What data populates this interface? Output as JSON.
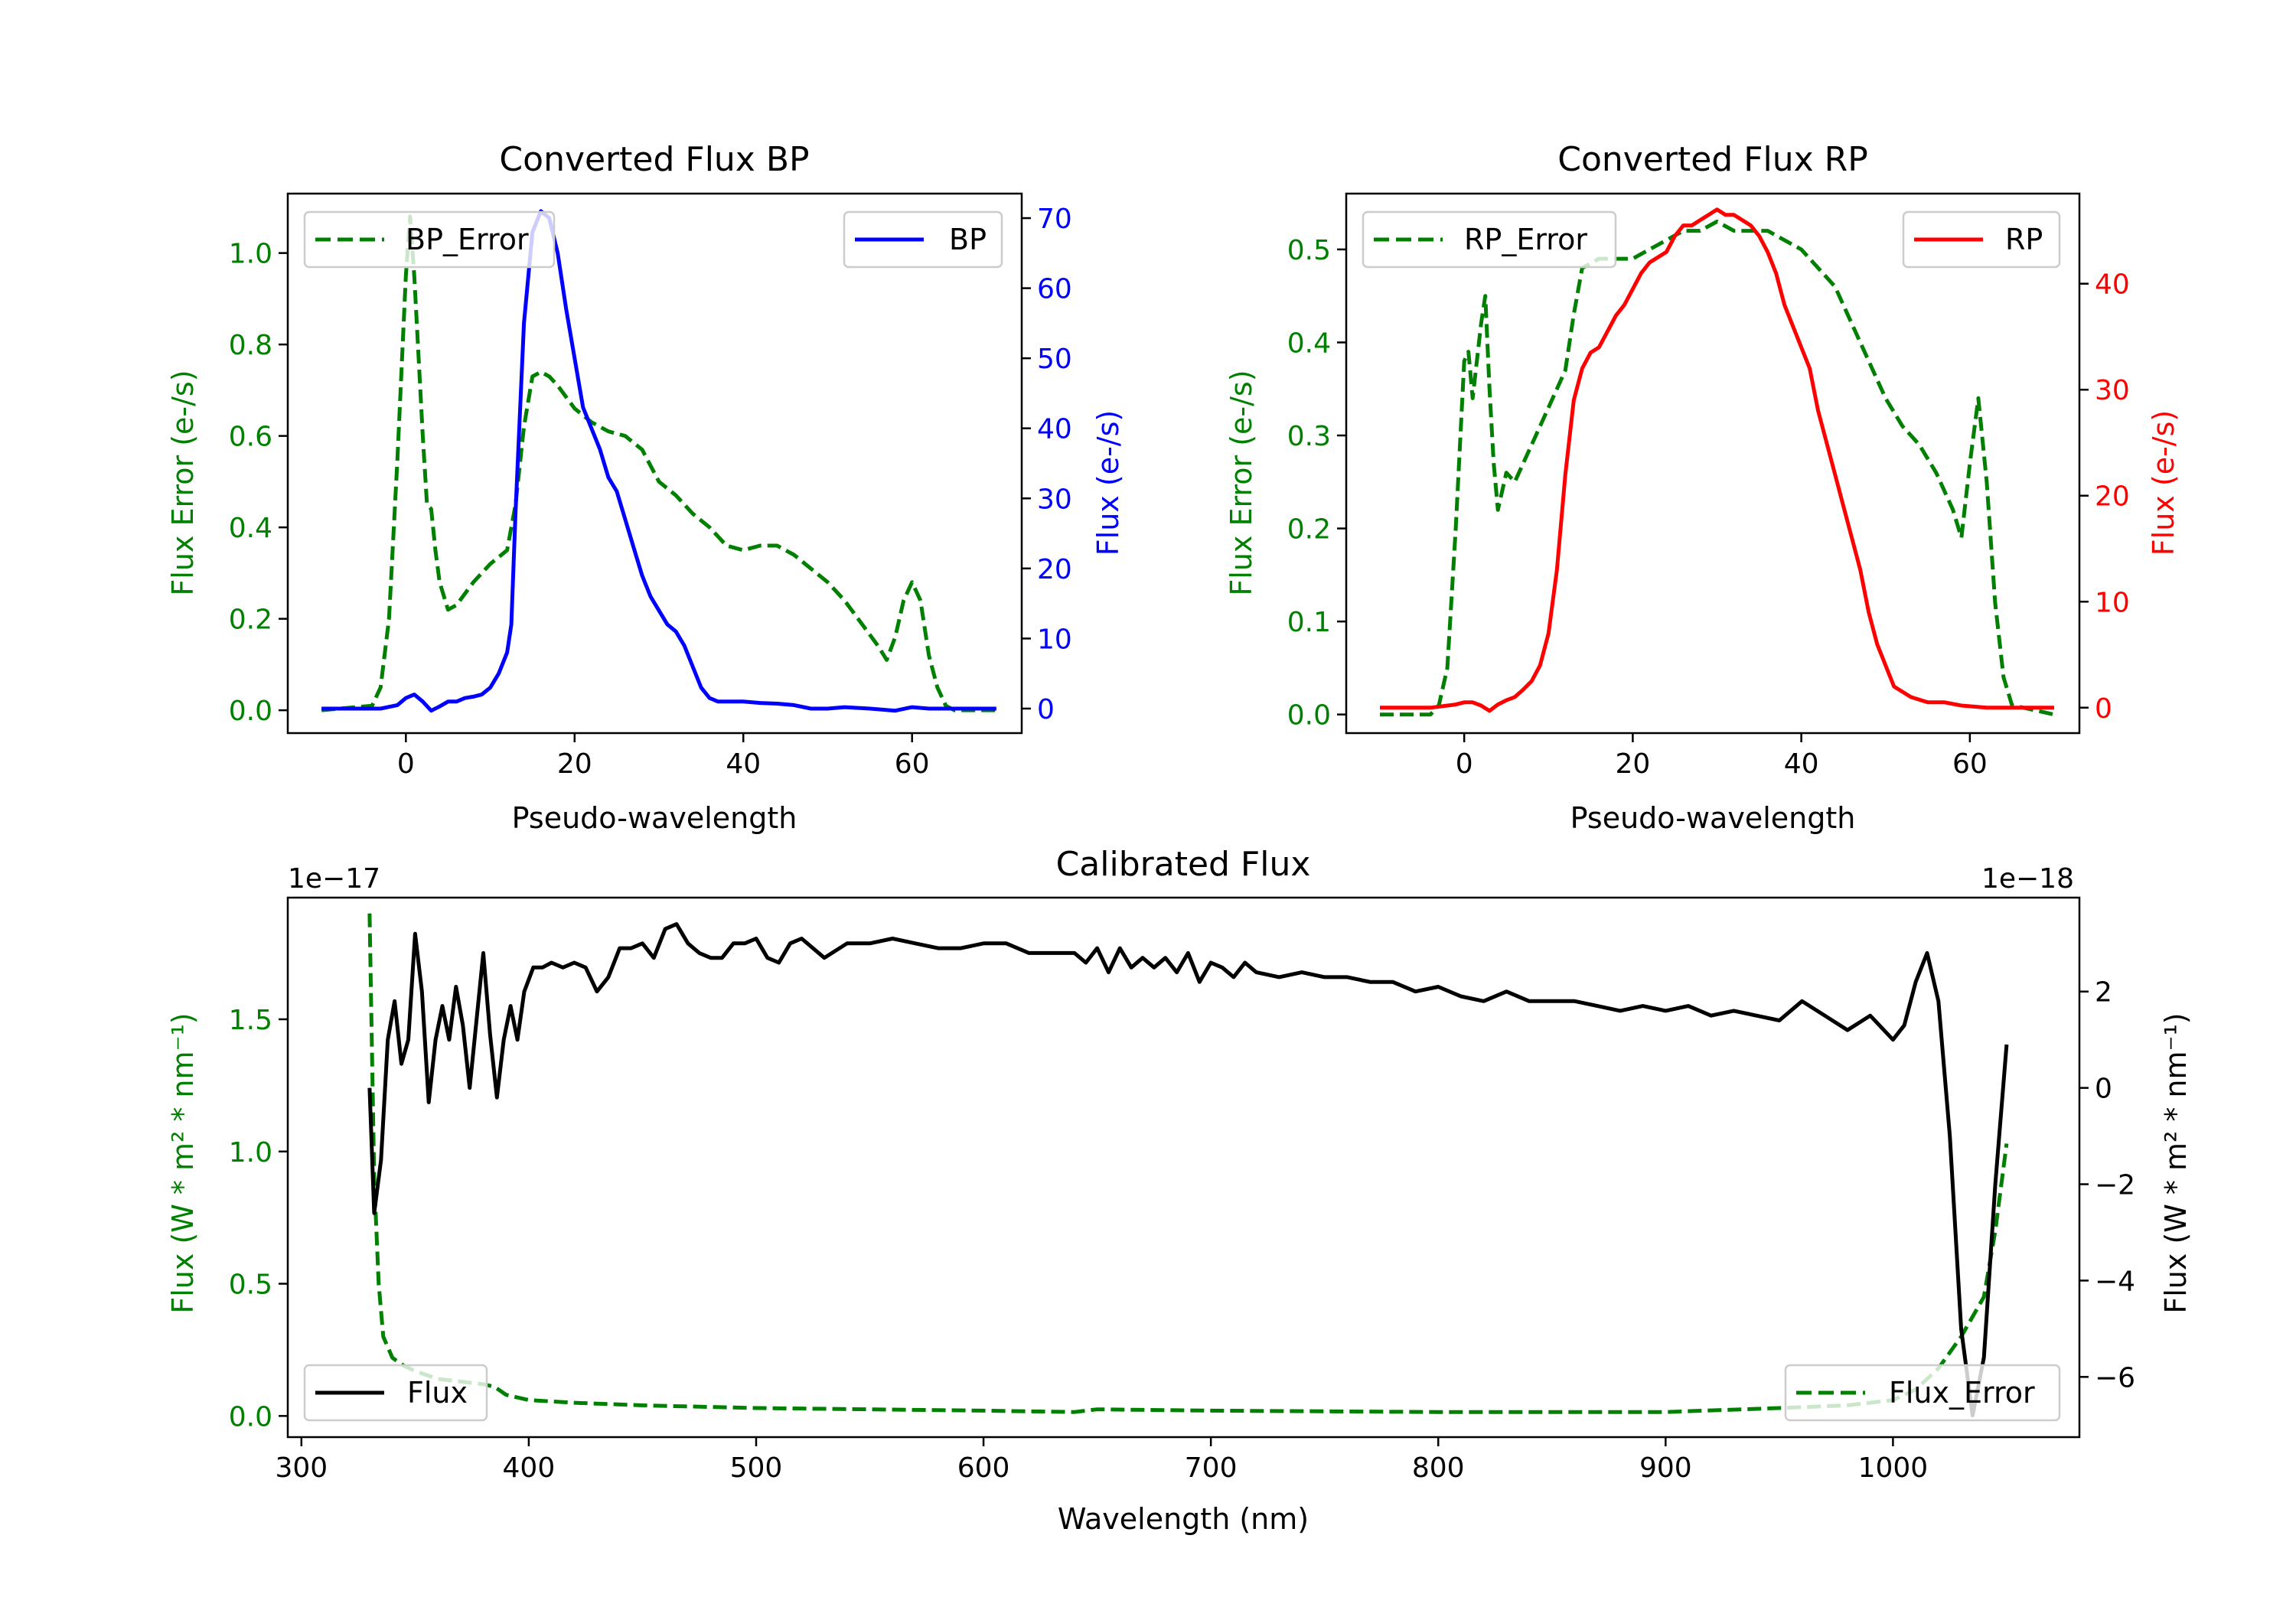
{
  "colors": {
    "green": "#008000",
    "blue": "#0000ff",
    "red": "#ff0000",
    "black": "#000000"
  },
  "chart_data": [
    {
      "type": "line",
      "title": "Converted Flux BP",
      "xlabel": "Pseudo-wavelength",
      "ylabel_left": "Flux Error (e-/s)",
      "ylabel_right": "Flux (e-/s)",
      "xlim": [
        -14,
        73
      ],
      "ylim_left": [
        -0.05,
        1.13
      ],
      "ylim_right": [
        -3.5,
        73.5
      ],
      "xticks": [
        0,
        20,
        40,
        60
      ],
      "xtick_labels": [
        "0",
        "20",
        "40",
        "60"
      ],
      "yticks_left": [
        0.0,
        0.2,
        0.4,
        0.6,
        0.8,
        1.0
      ],
      "ytick_labels_left": [
        "0.0",
        "0.2",
        "0.4",
        "0.6",
        "0.8",
        "1.0"
      ],
      "yticks_right": [
        0,
        10,
        20,
        30,
        40,
        50,
        60,
        70
      ],
      "ytick_labels_right": [
        "0",
        "10",
        "20",
        "30",
        "40",
        "50",
        "60",
        "70"
      ],
      "legend_left": "BP_Error",
      "legend_right": "BP",
      "series": [
        {
          "name": "BP_Error",
          "axis": "left",
          "style": "dashed",
          "color": "green",
          "x": [
            -10,
            -4,
            -3,
            -2,
            -1,
            0,
            0.5,
            1,
            2,
            2.5,
            3,
            3.5,
            4,
            5,
            6,
            8,
            10,
            12,
            13,
            14,
            15,
            16,
            17,
            18,
            20,
            22,
            24,
            26,
            28,
            30,
            32,
            34,
            36,
            38,
            40,
            42,
            44,
            46,
            48,
            50,
            52,
            54,
            56,
            57,
            58,
            59,
            60,
            61,
            62,
            63,
            64,
            65,
            70
          ],
          "y": [
            0,
            0.01,
            0.05,
            0.2,
            0.55,
            0.95,
            1.08,
            0.95,
            0.6,
            0.45,
            0.44,
            0.35,
            0.28,
            0.22,
            0.23,
            0.28,
            0.32,
            0.35,
            0.45,
            0.62,
            0.73,
            0.74,
            0.73,
            0.71,
            0.66,
            0.63,
            0.61,
            0.6,
            0.57,
            0.5,
            0.47,
            0.43,
            0.4,
            0.36,
            0.35,
            0.36,
            0.36,
            0.34,
            0.31,
            0.28,
            0.24,
            0.19,
            0.14,
            0.11,
            0.16,
            0.24,
            0.28,
            0.24,
            0.12,
            0.05,
            0.01,
            0,
            0
          ]
        },
        {
          "name": "BP",
          "axis": "right",
          "style": "solid",
          "color": "blue",
          "x": [
            -10,
            -3,
            -1,
            0,
            1,
            2,
            3,
            4,
            5,
            6,
            7,
            8,
            9,
            10,
            11,
            12,
            12.5,
            13,
            14,
            15,
            16,
            17,
            18,
            19,
            20,
            21,
            22,
            23,
            24,
            25,
            26,
            27,
            28,
            29,
            30,
            31,
            32,
            33,
            34,
            35,
            36,
            37,
            38,
            40,
            42,
            44,
            46,
            48,
            50,
            52,
            55,
            58,
            60,
            62,
            65,
            70
          ],
          "y": [
            0,
            0,
            0.5,
            1.5,
            2,
            1,
            -0.3,
            0.3,
            1,
            1,
            1.5,
            1.7,
            2,
            3,
            5,
            8,
            12,
            28,
            55,
            68,
            71,
            70,
            65,
            57,
            50,
            43,
            40,
            37,
            33,
            31,
            27,
            23,
            19,
            16,
            14,
            12,
            11,
            9,
            6,
            3,
            1.5,
            1,
            1,
            1,
            0.8,
            0.7,
            0.5,
            0,
            0,
            0.2,
            0,
            -0.3,
            0.2,
            0,
            0,
            0
          ]
        }
      ]
    },
    {
      "type": "line",
      "title": "Converted Flux RP",
      "xlabel": "Pseudo-wavelength",
      "ylabel_left": "Flux Error (e-/s)",
      "ylabel_right": "Flux (e-/s)",
      "xlim": [
        -14,
        73
      ],
      "ylim_left": [
        -0.02,
        0.56
      ],
      "ylim_right": [
        -2.4,
        48.5
      ],
      "xticks": [
        0,
        20,
        40,
        60
      ],
      "xtick_labels": [
        "0",
        "20",
        "40",
        "60"
      ],
      "yticks_left": [
        0.0,
        0.1,
        0.2,
        0.3,
        0.4,
        0.5
      ],
      "ytick_labels_left": [
        "0.0",
        "0.1",
        "0.2",
        "0.3",
        "0.4",
        "0.5"
      ],
      "yticks_right": [
        0,
        10,
        20,
        30,
        40
      ],
      "ytick_labels_right": [
        "0",
        "10",
        "20",
        "30",
        "40"
      ],
      "legend_left": "RP_Error",
      "legend_right": "RP",
      "series": [
        {
          "name": "RP_Error",
          "axis": "left",
          "style": "dashed",
          "color": "green",
          "x": [
            -10,
            -4,
            -3,
            -2,
            -1,
            0,
            0.5,
            1,
            1.5,
            2,
            2.5,
            3,
            3.5,
            4,
            5,
            6,
            8,
            10,
            12,
            13,
            14,
            16,
            18,
            20,
            22,
            24,
            26,
            28,
            30,
            32,
            34,
            36,
            38,
            40,
            42,
            44,
            46,
            48,
            50,
            52,
            54,
            56,
            57,
            58,
            59,
            60,
            61,
            62,
            63,
            64,
            65,
            70
          ],
          "y": [
            0,
            0,
            0.01,
            0.05,
            0.2,
            0.38,
            0.39,
            0.34,
            0.38,
            0.42,
            0.45,
            0.35,
            0.27,
            0.22,
            0.26,
            0.25,
            0.29,
            0.33,
            0.37,
            0.43,
            0.48,
            0.49,
            0.49,
            0.49,
            0.5,
            0.51,
            0.52,
            0.52,
            0.53,
            0.52,
            0.52,
            0.52,
            0.51,
            0.5,
            0.48,
            0.46,
            0.42,
            0.38,
            0.34,
            0.31,
            0.29,
            0.26,
            0.24,
            0.22,
            0.19,
            0.27,
            0.34,
            0.25,
            0.12,
            0.04,
            0.01,
            0
          ]
        },
        {
          "name": "RP",
          "axis": "right",
          "style": "solid",
          "color": "red",
          "x": [
            -10,
            -4,
            -1,
            0,
            1,
            2,
            3,
            4,
            5,
            6,
            7,
            8,
            9,
            10,
            11,
            12,
            13,
            14,
            15,
            16,
            17,
            18,
            19,
            20,
            21,
            22,
            23,
            24,
            25,
            26,
            27,
            28,
            29,
            30,
            31,
            32,
            33,
            34,
            35,
            36,
            37,
            38,
            39,
            40,
            41,
            42,
            43,
            44,
            45,
            46,
            47,
            48,
            49,
            50,
            51,
            52,
            53,
            55,
            57,
            59,
            62,
            70
          ],
          "y": [
            0,
            0,
            0.3,
            0.5,
            0.5,
            0.2,
            -0.3,
            0.3,
            0.7,
            1,
            1.7,
            2.5,
            4,
            7,
            13,
            22,
            29,
            32,
            33.5,
            34,
            35.5,
            37,
            38,
            39.5,
            41,
            42,
            42.5,
            43,
            44.5,
            45.5,
            45.5,
            46,
            46.5,
            47,
            46.5,
            46.5,
            46,
            45.5,
            44.5,
            43,
            41,
            38,
            36,
            34,
            32,
            28,
            25,
            22,
            19,
            16,
            13,
            9,
            6,
            4,
            2,
            1.5,
            1,
            0.5,
            0.5,
            0.2,
            0,
            0
          ]
        }
      ]
    },
    {
      "type": "line",
      "title": "Calibrated Flux",
      "xlabel": "Wavelength (nm)",
      "ylabel_left": "Flux (W * m² * nm⁻¹)",
      "ylabel_right": "Flux (W * m² * nm⁻¹)",
      "left_scale_label": "1e−17",
      "right_scale_label": "1e−18",
      "xlim": [
        294,
        1082
      ],
      "ylim_left": [
        -0.08,
        1.96
      ],
      "ylim_right": [
        -7.25,
        3.95
      ],
      "xticks": [
        300,
        400,
        500,
        600,
        700,
        800,
        900,
        1000
      ],
      "xtick_labels": [
        "300",
        "400",
        "500",
        "600",
        "700",
        "800",
        "900",
        "1000"
      ],
      "yticks_left": [
        0.0,
        0.5,
        1.0,
        1.5
      ],
      "ytick_labels_left": [
        "0.0",
        "0.5",
        "1.0",
        "1.5"
      ],
      "yticks_right": [
        -6,
        -4,
        -2,
        0,
        2
      ],
      "ytick_labels_right": [
        "−6",
        "−4",
        "−2",
        "0",
        "2"
      ],
      "legend_left": "Flux",
      "legend_right": "Flux_Error",
      "series": [
        {
          "name": "Flux_Error",
          "axis": "left",
          "style": "dashed",
          "color": "green",
          "x": [
            330,
            331,
            332,
            334,
            336,
            340,
            345,
            350,
            360,
            370,
            380,
            385,
            390,
            400,
            420,
            450,
            500,
            550,
            600,
            640,
            650,
            700,
            800,
            900,
            950,
            980,
            1000,
            1010,
            1020,
            1030,
            1040,
            1045,
            1050
          ],
          "y": [
            1.9,
            1.4,
            0.9,
            0.5,
            0.3,
            0.22,
            0.19,
            0.17,
            0.14,
            0.13,
            0.12,
            0.11,
            0.08,
            0.06,
            0.05,
            0.04,
            0.03,
            0.025,
            0.02,
            0.015,
            0.025,
            0.02,
            0.015,
            0.015,
            0.03,
            0.04,
            0.06,
            0.1,
            0.18,
            0.3,
            0.45,
            0.7,
            1.03
          ]
        },
        {
          "name": "Flux",
          "axis": "right",
          "style": "solid",
          "color": "black",
          "x": [
            330,
            332,
            335,
            338,
            341,
            344,
            347,
            350,
            353,
            356,
            359,
            362,
            365,
            368,
            371,
            374,
            377,
            380,
            383,
            386,
            389,
            392,
            395,
            398,
            402,
            406,
            410,
            415,
            420,
            425,
            430,
            435,
            440,
            445,
            450,
            455,
            460,
            465,
            470,
            475,
            480,
            485,
            490,
            495,
            500,
            505,
            510,
            515,
            520,
            530,
            540,
            550,
            560,
            570,
            580,
            590,
            600,
            610,
            620,
            630,
            640,
            645,
            650,
            655,
            660,
            665,
            670,
            675,
            680,
            685,
            690,
            695,
            700,
            705,
            710,
            715,
            720,
            730,
            740,
            750,
            760,
            770,
            780,
            790,
            800,
            810,
            820,
            830,
            840,
            850,
            860,
            870,
            880,
            890,
            900,
            910,
            920,
            930,
            940,
            950,
            960,
            970,
            980,
            990,
            1000,
            1005,
            1010,
            1015,
            1020,
            1025,
            1030,
            1035,
            1040,
            1045,
            1050
          ],
          "y": [
            0,
            -2.6,
            -1.5,
            1.0,
            1.8,
            0.5,
            1.0,
            3.2,
            2.0,
            -0.3,
            1.0,
            1.7,
            1.0,
            2.1,
            1.3,
            0.0,
            1.4,
            2.8,
            1.1,
            -0.2,
            1.0,
            1.7,
            1.0,
            2.0,
            2.5,
            2.5,
            2.6,
            2.5,
            2.6,
            2.5,
            2.0,
            2.3,
            2.9,
            2.9,
            3.0,
            2.7,
            3.3,
            3.4,
            3.0,
            2.8,
            2.7,
            2.7,
            3.0,
            3.0,
            3.1,
            2.7,
            2.6,
            3.0,
            3.1,
            2.7,
            3.0,
            3.0,
            3.1,
            3.0,
            2.9,
            2.9,
            3.0,
            3.0,
            2.8,
            2.8,
            2.8,
            2.6,
            2.9,
            2.4,
            2.9,
            2.5,
            2.7,
            2.5,
            2.7,
            2.4,
            2.8,
            2.2,
            2.6,
            2.5,
            2.3,
            2.6,
            2.4,
            2.3,
            2.4,
            2.3,
            2.3,
            2.2,
            2.2,
            2.0,
            2.1,
            1.9,
            1.8,
            2.0,
            1.8,
            1.8,
            1.8,
            1.7,
            1.6,
            1.7,
            1.6,
            1.7,
            1.5,
            1.6,
            1.5,
            1.4,
            1.8,
            1.5,
            1.2,
            1.5,
            1.0,
            1.3,
            2.2,
            2.8,
            1.8,
            -1.0,
            -5.0,
            -6.8,
            -5.6,
            -2.0,
            0.9
          ]
        }
      ]
    }
  ]
}
